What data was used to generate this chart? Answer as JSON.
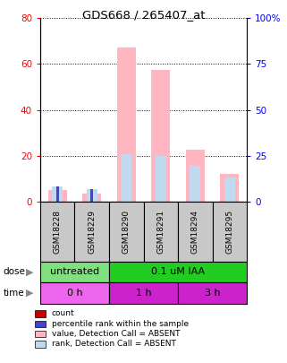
{
  "title": "GDS668 / 265407_at",
  "samples": [
    "GSM18228",
    "GSM18229",
    "GSM18290",
    "GSM18291",
    "GSM18294",
    "GSM18295"
  ],
  "value_bars": [
    5.0,
    3.5,
    67.0,
    57.5,
    22.5,
    12.0
  ],
  "rank_bars_pct": [
    8.0,
    6.5,
    26.0,
    25.0,
    19.5,
    13.0
  ],
  "count_bars": [
    5.0,
    3.5,
    0.0,
    0.0,
    0.0,
    0.0
  ],
  "count_rank_pct": [
    8.0,
    6.5,
    0.0,
    0.0,
    0.0,
    0.0
  ],
  "ylim_left": [
    0,
    80
  ],
  "ylim_right": [
    0,
    100
  ],
  "yticks_left": [
    0,
    20,
    40,
    60,
    80
  ],
  "yticks_right": [
    0,
    25,
    50,
    75,
    100
  ],
  "ytick_labels_left": [
    "0",
    "20",
    "40",
    "60",
    "80"
  ],
  "ytick_labels_right": [
    "0",
    "25",
    "50",
    "75",
    "100%"
  ],
  "dose_groups": [
    {
      "label": "untreated",
      "span": [
        0,
        2
      ],
      "color": "#80e080"
    },
    {
      "label": "0.1 uM IAA",
      "span": [
        2,
        6
      ],
      "color": "#22cc22"
    }
  ],
  "time_groups": [
    {
      "label": "0 h",
      "span": [
        0,
        2
      ],
      "color": "#ee66ee"
    },
    {
      "label": "1 h",
      "span": [
        2,
        4
      ],
      "color": "#cc22cc"
    },
    {
      "label": "3 h",
      "span": [
        4,
        6
      ],
      "color": "#cc22cc"
    }
  ],
  "value_color": "#ffb6c1",
  "rank_color": "#c0d8f0",
  "count_color": "#cc0000",
  "count_rank_color": "#4444cc",
  "legend_items": [
    {
      "label": "count",
      "color": "#cc0000"
    },
    {
      "label": "percentile rank within the sample",
      "color": "#4444cc"
    },
    {
      "label": "value, Detection Call = ABSENT",
      "color": "#ffb6c1"
    },
    {
      "label": "rank, Detection Call = ABSENT",
      "color": "#c0d8f0"
    }
  ],
  "bgcolor": "#ffffff",
  "sample_box_color": "#c8c8c8"
}
